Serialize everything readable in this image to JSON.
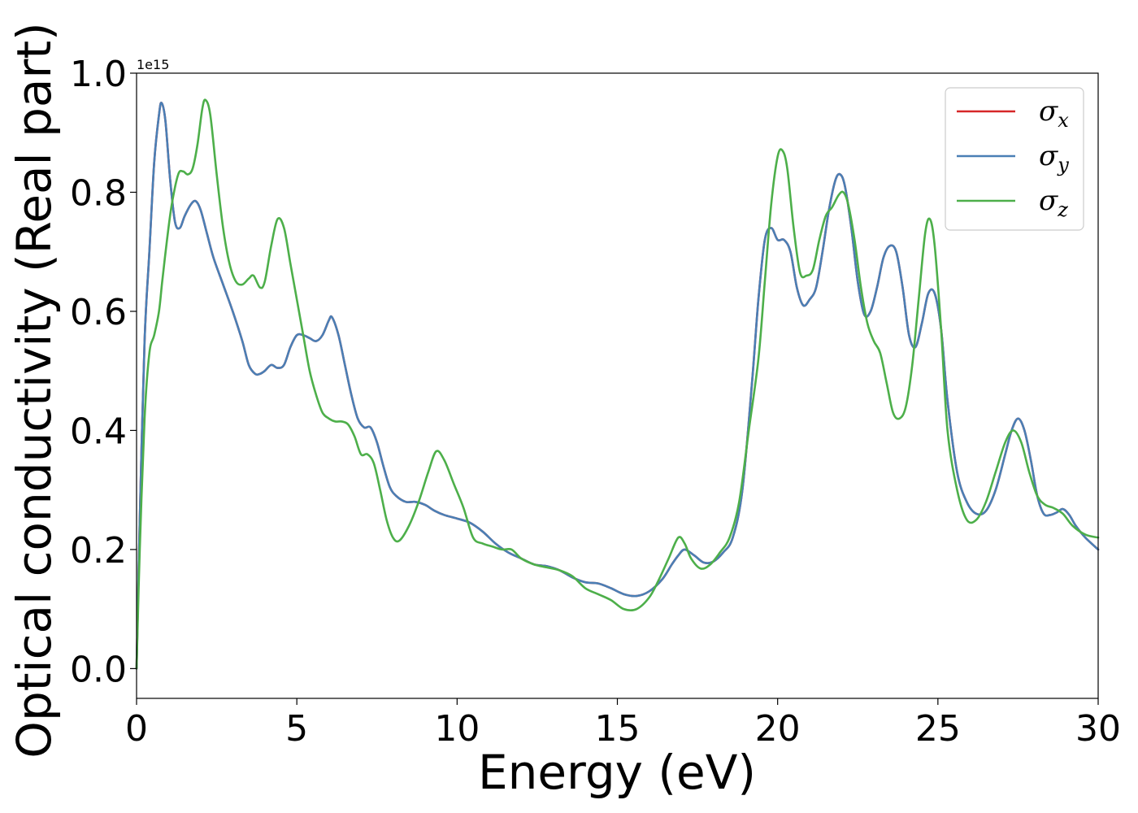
{
  "chart_data": {
    "type": "line",
    "title": "",
    "xlabel": "Energy (eV)",
    "ylabel": "Optical conductivity (Real part)",
    "y_offset_label": "1e15",
    "xlim": [
      0,
      30
    ],
    "ylim": [
      -0.05,
      1.0
    ],
    "xticks": [
      0,
      5,
      10,
      15,
      20,
      25,
      30
    ],
    "xtick_labels": [
      "0",
      "5",
      "10",
      "15",
      "20",
      "25",
      "30"
    ],
    "yticks": [
      0.0,
      0.2,
      0.4,
      0.6,
      0.8,
      1.0
    ],
    "ytick_labels": [
      "0.0",
      "0.2",
      "0.4",
      "0.6",
      "0.8",
      "1.0"
    ],
    "grid": false,
    "legend_position": "top-right",
    "series": [
      {
        "name": "σx",
        "symbol": "σ",
        "subscript": "x",
        "color": "#d62728",
        "x": [
          0,
          0.1,
          0.25,
          0.4,
          0.55,
          0.7,
          0.78,
          0.9,
          1.05,
          1.2,
          1.35,
          1.5,
          1.7,
          1.85,
          2.0,
          2.2,
          2.4,
          2.7,
          3.0,
          3.3,
          3.5,
          3.7,
          3.85,
          4.0,
          4.2,
          4.4,
          4.6,
          4.8,
          5.0,
          5.2,
          5.4,
          5.6,
          5.8,
          6.0,
          6.1,
          6.3,
          6.5,
          6.7,
          6.9,
          7.1,
          7.3,
          7.5,
          7.7,
          7.9,
          8.1,
          8.4,
          8.7,
          9.0,
          9.3,
          9.6,
          10.0,
          10.4,
          10.8,
          11.2,
          11.6,
          12.0,
          12.4,
          12.8,
          13.2,
          13.6,
          14.0,
          14.4,
          14.8,
          15.2,
          15.6,
          16.0,
          16.4,
          16.7,
          16.9,
          17.1,
          17.4,
          17.7,
          18.0,
          18.3,
          18.6,
          18.9,
          19.2,
          19.4,
          19.6,
          19.8,
          20.0,
          20.2,
          20.4,
          20.6,
          20.8,
          21.0,
          21.2,
          21.4,
          21.6,
          21.8,
          21.95,
          22.1,
          22.3,
          22.5,
          22.7,
          22.9,
          23.1,
          23.3,
          23.5,
          23.7,
          23.9,
          24.1,
          24.3,
          24.5,
          24.7,
          24.9,
          25.1,
          25.3,
          25.6,
          25.9,
          26.2,
          26.5,
          26.8,
          27.1,
          27.3,
          27.5,
          27.7,
          27.9,
          28.1,
          28.3,
          28.5,
          28.7,
          28.9,
          29.1,
          29.3,
          29.6,
          30.0
        ],
        "y": [
          0.0,
          0.25,
          0.55,
          0.7,
          0.85,
          0.93,
          0.95,
          0.92,
          0.82,
          0.75,
          0.74,
          0.76,
          0.78,
          0.785,
          0.77,
          0.73,
          0.69,
          0.645,
          0.6,
          0.55,
          0.51,
          0.495,
          0.495,
          0.5,
          0.51,
          0.505,
          0.51,
          0.54,
          0.56,
          0.56,
          0.555,
          0.55,
          0.56,
          0.585,
          0.59,
          0.56,
          0.51,
          0.46,
          0.42,
          0.405,
          0.405,
          0.38,
          0.34,
          0.305,
          0.29,
          0.28,
          0.28,
          0.275,
          0.265,
          0.258,
          0.252,
          0.245,
          0.23,
          0.21,
          0.195,
          0.185,
          0.175,
          0.172,
          0.165,
          0.153,
          0.145,
          0.143,
          0.135,
          0.125,
          0.122,
          0.13,
          0.15,
          0.175,
          0.19,
          0.2,
          0.19,
          0.178,
          0.18,
          0.195,
          0.22,
          0.3,
          0.48,
          0.62,
          0.72,
          0.74,
          0.72,
          0.72,
          0.7,
          0.64,
          0.61,
          0.62,
          0.64,
          0.7,
          0.77,
          0.82,
          0.83,
          0.81,
          0.74,
          0.65,
          0.595,
          0.6,
          0.64,
          0.69,
          0.71,
          0.7,
          0.64,
          0.56,
          0.54,
          0.58,
          0.63,
          0.63,
          0.57,
          0.45,
          0.33,
          0.28,
          0.26,
          0.265,
          0.3,
          0.36,
          0.4,
          0.42,
          0.4,
          0.35,
          0.29,
          0.26,
          0.258,
          0.262,
          0.268,
          0.258,
          0.24,
          0.22,
          0.2
        ]
      },
      {
        "name": "σy",
        "symbol": "σ",
        "subscript": "y",
        "color": "#4a7fb5",
        "x": [
          0,
          0.1,
          0.25,
          0.4,
          0.55,
          0.7,
          0.78,
          0.9,
          1.05,
          1.2,
          1.35,
          1.5,
          1.7,
          1.85,
          2.0,
          2.2,
          2.4,
          2.7,
          3.0,
          3.3,
          3.5,
          3.7,
          3.85,
          4.0,
          4.2,
          4.4,
          4.6,
          4.8,
          5.0,
          5.2,
          5.4,
          5.6,
          5.8,
          6.0,
          6.1,
          6.3,
          6.5,
          6.7,
          6.9,
          7.1,
          7.3,
          7.5,
          7.7,
          7.9,
          8.1,
          8.4,
          8.7,
          9.0,
          9.3,
          9.6,
          10.0,
          10.4,
          10.8,
          11.2,
          11.6,
          12.0,
          12.4,
          12.8,
          13.2,
          13.6,
          14.0,
          14.4,
          14.8,
          15.2,
          15.6,
          16.0,
          16.4,
          16.7,
          16.9,
          17.1,
          17.4,
          17.7,
          18.0,
          18.3,
          18.6,
          18.9,
          19.2,
          19.4,
          19.6,
          19.8,
          20.0,
          20.2,
          20.4,
          20.6,
          20.8,
          21.0,
          21.2,
          21.4,
          21.6,
          21.8,
          21.95,
          22.1,
          22.3,
          22.5,
          22.7,
          22.9,
          23.1,
          23.3,
          23.5,
          23.7,
          23.9,
          24.1,
          24.3,
          24.5,
          24.7,
          24.9,
          25.1,
          25.3,
          25.6,
          25.9,
          26.2,
          26.5,
          26.8,
          27.1,
          27.3,
          27.5,
          27.7,
          27.9,
          28.1,
          28.3,
          28.5,
          28.7,
          28.9,
          29.1,
          29.3,
          29.6,
          30.0
        ],
        "y": [
          0.0,
          0.25,
          0.55,
          0.7,
          0.85,
          0.93,
          0.95,
          0.92,
          0.82,
          0.75,
          0.74,
          0.76,
          0.78,
          0.785,
          0.77,
          0.73,
          0.69,
          0.645,
          0.6,
          0.55,
          0.51,
          0.495,
          0.495,
          0.5,
          0.51,
          0.505,
          0.51,
          0.54,
          0.56,
          0.56,
          0.555,
          0.55,
          0.56,
          0.585,
          0.59,
          0.56,
          0.51,
          0.46,
          0.42,
          0.405,
          0.405,
          0.38,
          0.34,
          0.305,
          0.29,
          0.28,
          0.28,
          0.275,
          0.265,
          0.258,
          0.252,
          0.245,
          0.23,
          0.21,
          0.195,
          0.185,
          0.175,
          0.172,
          0.165,
          0.153,
          0.145,
          0.143,
          0.135,
          0.125,
          0.122,
          0.13,
          0.15,
          0.175,
          0.19,
          0.2,
          0.19,
          0.178,
          0.18,
          0.195,
          0.22,
          0.3,
          0.48,
          0.62,
          0.72,
          0.74,
          0.72,
          0.72,
          0.7,
          0.64,
          0.61,
          0.62,
          0.64,
          0.7,
          0.77,
          0.82,
          0.83,
          0.81,
          0.74,
          0.65,
          0.595,
          0.6,
          0.64,
          0.69,
          0.71,
          0.7,
          0.64,
          0.56,
          0.54,
          0.58,
          0.63,
          0.63,
          0.57,
          0.45,
          0.33,
          0.28,
          0.26,
          0.265,
          0.3,
          0.36,
          0.4,
          0.42,
          0.4,
          0.35,
          0.29,
          0.26,
          0.258,
          0.262,
          0.268,
          0.258,
          0.24,
          0.22,
          0.2
        ]
      },
      {
        "name": "σz",
        "symbol": "σ",
        "subscript": "z",
        "color": "#4daf4a",
        "x": [
          0,
          0.1,
          0.25,
          0.4,
          0.55,
          0.7,
          0.8,
          0.95,
          1.1,
          1.3,
          1.45,
          1.6,
          1.75,
          1.9,
          2.05,
          2.15,
          2.3,
          2.5,
          2.7,
          2.9,
          3.1,
          3.3,
          3.5,
          3.65,
          3.85,
          4.0,
          4.2,
          4.4,
          4.6,
          4.8,
          5.0,
          5.2,
          5.4,
          5.6,
          5.8,
          6.0,
          6.2,
          6.4,
          6.6,
          6.8,
          7.0,
          7.2,
          7.4,
          7.6,
          7.8,
          8.0,
          8.2,
          8.5,
          8.8,
          9.1,
          9.35,
          9.6,
          9.9,
          10.2,
          10.5,
          10.8,
          11.1,
          11.4,
          11.7,
          12.0,
          12.4,
          12.8,
          13.2,
          13.6,
          14.0,
          14.4,
          14.8,
          15.2,
          15.6,
          16.0,
          16.3,
          16.6,
          16.9,
          17.1,
          17.3,
          17.6,
          17.9,
          18.2,
          18.5,
          18.8,
          19.1,
          19.4,
          19.6,
          19.8,
          20.0,
          20.15,
          20.3,
          20.5,
          20.7,
          20.9,
          21.1,
          21.3,
          21.5,
          21.7,
          21.9,
          22.05,
          22.2,
          22.4,
          22.6,
          22.8,
          23.0,
          23.2,
          23.4,
          23.6,
          23.8,
          24.0,
          24.2,
          24.4,
          24.6,
          24.75,
          24.9,
          25.1,
          25.3,
          25.6,
          25.9,
          26.2,
          26.5,
          26.8,
          27.1,
          27.35,
          27.6,
          27.85,
          28.1,
          28.35,
          28.6,
          28.9,
          29.2,
          29.6,
          30.0
        ],
        "y": [
          0.0,
          0.2,
          0.42,
          0.53,
          0.56,
          0.6,
          0.65,
          0.72,
          0.78,
          0.83,
          0.835,
          0.83,
          0.84,
          0.88,
          0.94,
          0.955,
          0.93,
          0.83,
          0.74,
          0.68,
          0.65,
          0.645,
          0.655,
          0.66,
          0.64,
          0.65,
          0.71,
          0.755,
          0.74,
          0.68,
          0.62,
          0.56,
          0.5,
          0.46,
          0.43,
          0.42,
          0.415,
          0.415,
          0.41,
          0.39,
          0.36,
          0.36,
          0.345,
          0.3,
          0.25,
          0.22,
          0.215,
          0.24,
          0.28,
          0.33,
          0.365,
          0.35,
          0.31,
          0.27,
          0.22,
          0.21,
          0.205,
          0.2,
          0.2,
          0.185,
          0.175,
          0.17,
          0.165,
          0.155,
          0.135,
          0.125,
          0.115,
          0.1,
          0.1,
          0.12,
          0.15,
          0.185,
          0.22,
          0.21,
          0.185,
          0.168,
          0.175,
          0.195,
          0.22,
          0.28,
          0.4,
          0.52,
          0.65,
          0.78,
          0.86,
          0.87,
          0.84,
          0.74,
          0.665,
          0.66,
          0.67,
          0.72,
          0.76,
          0.775,
          0.795,
          0.8,
          0.78,
          0.72,
          0.64,
          0.58,
          0.55,
          0.53,
          0.48,
          0.43,
          0.42,
          0.44,
          0.51,
          0.62,
          0.73,
          0.755,
          0.71,
          0.57,
          0.4,
          0.3,
          0.25,
          0.25,
          0.28,
          0.33,
          0.38,
          0.4,
          0.38,
          0.33,
          0.29,
          0.275,
          0.27,
          0.26,
          0.24,
          0.225,
          0.22
        ]
      }
    ]
  }
}
